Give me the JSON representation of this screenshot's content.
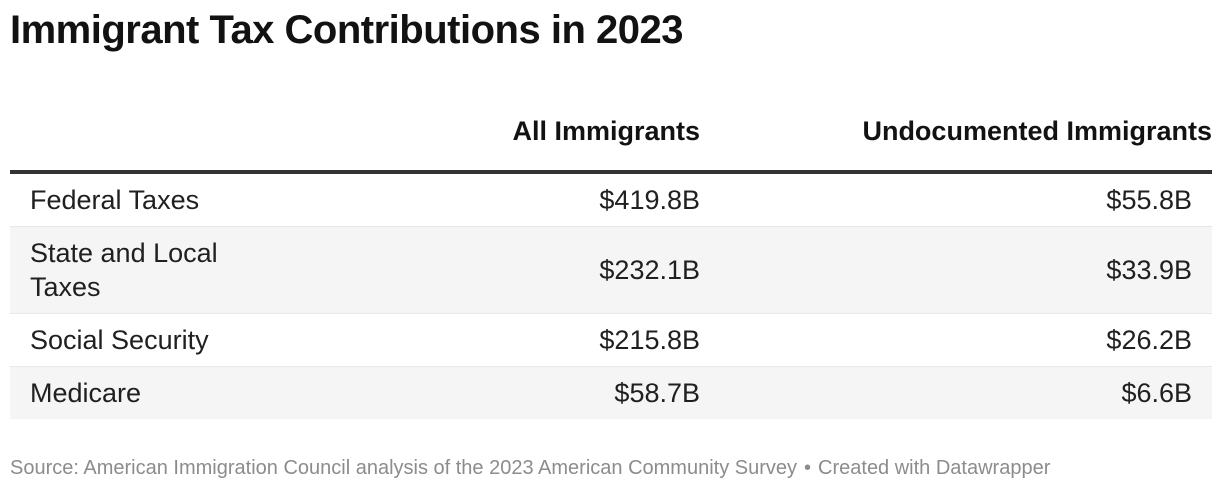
{
  "title": "Immigrant Tax Contributions in 2023",
  "table": {
    "columns": [
      "",
      "All Immigrants",
      "Undocumented Immigrants"
    ],
    "rows": [
      {
        "label": "Federal Taxes",
        "values": [
          "$419.8B",
          "$55.8B"
        ]
      },
      {
        "label": "State and Local Taxes",
        "values": [
          "$232.1B",
          "$33.9B"
        ]
      },
      {
        "label": "Social Security",
        "values": [
          "$215.8B",
          "$26.2B"
        ]
      },
      {
        "label": "Medicare",
        "values": [
          "$58.7B",
          "$6.6B"
        ]
      }
    ]
  },
  "footer": {
    "source": "Source: American Immigration Council analysis of the 2023 American Community Survey",
    "separator": "•",
    "credit": "Created with Datawrapper"
  },
  "colors": {
    "text": "#202020",
    "title": "#121212",
    "header_rule": "#333333",
    "row_stripe": "#f5f5f5",
    "row_divider": "#e8e8e8",
    "muted": "#8c8c8c",
    "background": "#ffffff"
  },
  "chart_data": {
    "type": "table",
    "title": "Immigrant Tax Contributions in 2023",
    "categories": [
      "Federal Taxes",
      "State and Local Taxes",
      "Social Security",
      "Medicare"
    ],
    "series": [
      {
        "name": "All Immigrants",
        "unit": "USD billions",
        "values": [
          419.8,
          232.1,
          215.8,
          58.7
        ]
      },
      {
        "name": "Undocumented Immigrants",
        "unit": "USD billions",
        "values": [
          55.8,
          33.9,
          26.2,
          6.6
        ]
      }
    ],
    "value_format": "$#.#B",
    "layout_hints": {
      "striped_rows": true,
      "value_alignment": "right",
      "header_rule": true
    },
    "source": "American Immigration Council analysis of the 2023 American Community Survey",
    "credit": "Created with Datawrapper"
  }
}
